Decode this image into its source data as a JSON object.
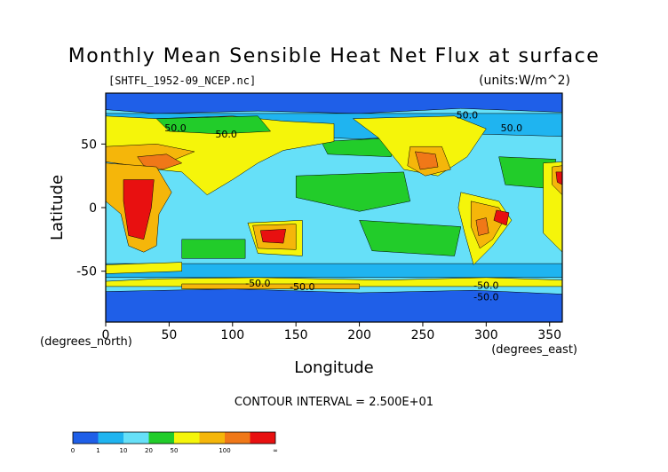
{
  "chart_data": {
    "type": "heatmap",
    "title": "Monthly Mean Sensible Heat Net Flux at surface",
    "subtitle": "[SHTFL_1952-09_NCEP.nc]",
    "units": "(units:W/m^2)",
    "xlabel": "Longitude",
    "ylabel": "Latitude",
    "x_unit_label": "(degrees_east)",
    "y_unit_label": "(degrees_north)",
    "xlim": [
      0,
      360
    ],
    "ylim": [
      -90,
      90
    ],
    "x_ticks": [
      0,
      50,
      100,
      150,
      200,
      250,
      300,
      350
    ],
    "y_ticks": [
      -50,
      0,
      50
    ],
    "contour_interval_label": "CONTOUR INTERVAL = 2.500E+01",
    "contour_labels": [
      "50.0",
      "50.0",
      "50.0",
      "50.0",
      "-50.0",
      "-50.0",
      "-50.0",
      "-50.0"
    ],
    "colorbar": {
      "bins": [
        "#1f5fe8",
        "#1fb4f0",
        "#66e0f8",
        "#22cc2a",
        "#f5f50a",
        "#f5b60a",
        "#f07818",
        "#e81010"
      ],
      "tick_labels": [
        "0",
        "1",
        "10",
        "20",
        "50",
        "100",
        "∞"
      ]
    },
    "levels": [
      {
        "name": "ocean-high-lat",
        "color": "#1f5fe8"
      },
      {
        "name": "ocean-base",
        "color": "#66e0f8"
      },
      {
        "name": "mid-lat-ocean",
        "color": "#1fb4f0"
      },
      {
        "name": "subtropical-ocean",
        "color": "#22cc2a"
      },
      {
        "name": "land-warm",
        "color": "#f5f50a"
      },
      {
        "name": "land-hot",
        "color": "#f5b60a"
      },
      {
        "name": "land-very-hot",
        "color": "#f07818"
      },
      {
        "name": "land-extreme",
        "color": "#e81010"
      }
    ]
  }
}
